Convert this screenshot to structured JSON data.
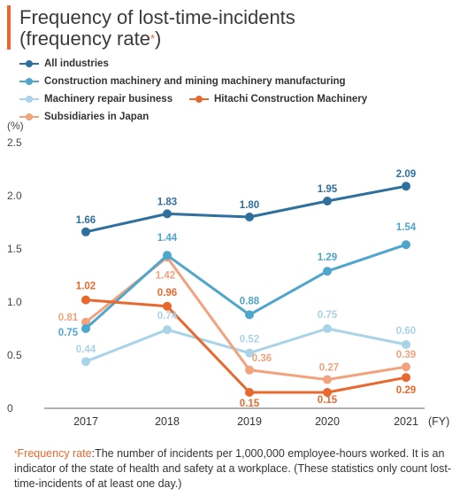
{
  "title": {
    "line1": "Frequency of lost-time-incidents",
    "line2": "(frequency rate",
    "asterisk": "*",
    "close": ")"
  },
  "colors": {
    "accent": "#e8682e",
    "axis": "#666666",
    "grid": "#d9d9d9"
  },
  "legend": [
    {
      "label": "All industries",
      "color": "#2e6f9e"
    },
    {
      "label": "Construction machinery and mining machinery manufacturing",
      "color": "#4ea6cc"
    },
    {
      "label": "Machinery repair business",
      "color": "#a9d3e8"
    },
    {
      "label": "Hitachi Construction Machinery",
      "color": "#e8682e"
    },
    {
      "label": "Subsidiaries in Japan",
      "color": "#f2a27c"
    }
  ],
  "chart_data": {
    "type": "line",
    "x": [
      "2017",
      "2018",
      "2019",
      "2020",
      "2021"
    ],
    "xlabel_unit": "(FY)",
    "ylabel_unit": "(%)",
    "ylim": [
      0,
      2.5
    ],
    "yticks": [
      "0",
      "0.5",
      "1.0",
      "1.5",
      "2.0",
      "2.5"
    ],
    "series": [
      {
        "name": "All industries",
        "values": [
          1.66,
          1.83,
          1.8,
          1.95,
          2.09
        ],
        "labels": [
          "1.66",
          "1.83",
          "1.80",
          "1.95",
          "2.09"
        ],
        "color": "#2e6f9e"
      },
      {
        "name": "Construction machinery and mining machinery manufacturing",
        "values": [
          0.75,
          1.44,
          0.88,
          1.29,
          1.54
        ],
        "labels": [
          "0.75",
          "1.44",
          "0.88",
          "1.29",
          "1.54"
        ],
        "color": "#4ea6cc"
      },
      {
        "name": "Machinery repair business",
        "values": [
          0.44,
          0.74,
          0.52,
          0.75,
          0.6
        ],
        "labels": [
          "0.44",
          "0.74",
          "0.52",
          "0.75",
          "0.60"
        ],
        "color": "#a9d3e8"
      },
      {
        "name": "Hitachi Construction Machinery",
        "values": [
          1.02,
          0.96,
          0.15,
          0.15,
          0.29
        ],
        "labels": [
          "1.02",
          "0.96",
          "0.15",
          "0.15",
          "0.29"
        ],
        "color": "#e8682e"
      },
      {
        "name": "Subsidiaries in Japan",
        "values": [
          0.81,
          1.42,
          0.36,
          0.27,
          0.39
        ],
        "labels": [
          "0.81",
          "1.42",
          "0.36",
          "0.27",
          "0.39"
        ],
        "color": "#f2a27c"
      }
    ]
  },
  "footnote": {
    "asterisk": "*",
    "term": "Frequency rate",
    "text": ":The number of incidents per 1,000,000 employee-hours worked. It is an indicator of the state of health and safety at a workplace. (These statistics only count lost-time-incidents of at least one day.)"
  }
}
